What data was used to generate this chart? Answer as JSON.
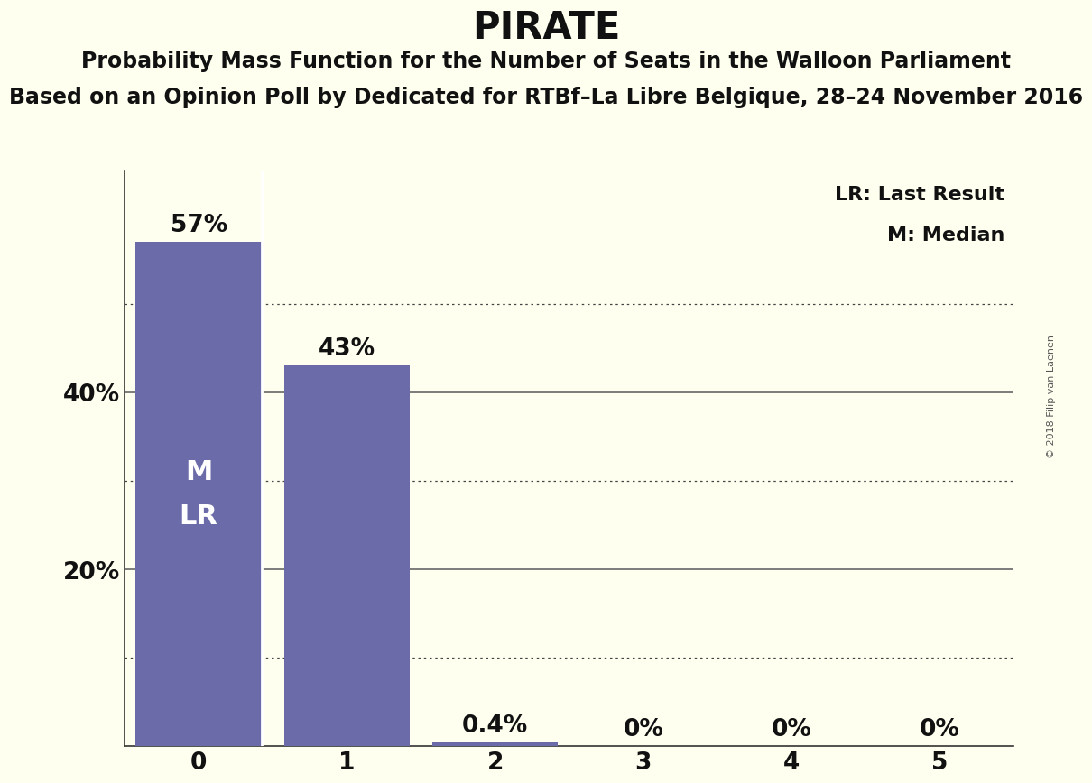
{
  "title": "PIRATE",
  "subtitle1": "Probability Mass Function for the Number of Seats in the Walloon Parliament",
  "subtitle2": "Based on an Opinion Poll by Dedicated for RTBf–La Libre Belgique, 28–24 November 2016",
  "categories": [
    0,
    1,
    2,
    3,
    4,
    5
  ],
  "values": [
    0.57,
    0.43,
    0.004,
    0.0,
    0.0,
    0.0
  ],
  "bar_labels": [
    "57%",
    "43%",
    "0.4%",
    "0%",
    "0%",
    "0%"
  ],
  "bar_color": "#6B6BAA",
  "background_color": "#FFFFF0",
  "ylim": [
    0,
    0.65
  ],
  "ytick_positions": [
    0.2,
    0.4
  ],
  "ytick_labels": [
    "20%",
    "40%"
  ],
  "grid_solid": [
    0.2,
    0.4
  ],
  "grid_dotted": [
    0.1,
    0.3,
    0.5
  ],
  "median_label": "M",
  "lr_label": "LR",
  "legend_text1": "LR: Last Result",
  "legend_text2": "M: Median",
  "copyright_text": "© 2018 Filip van Laenen",
  "title_fontsize": 30,
  "subtitle1_fontsize": 17,
  "subtitle2_fontsize": 17,
  "bar_label_fontsize": 19,
  "axis_tick_fontsize": 19,
  "inside_label_fontsize": 22,
  "legend_fontsize": 16,
  "copyright_fontsize": 8
}
